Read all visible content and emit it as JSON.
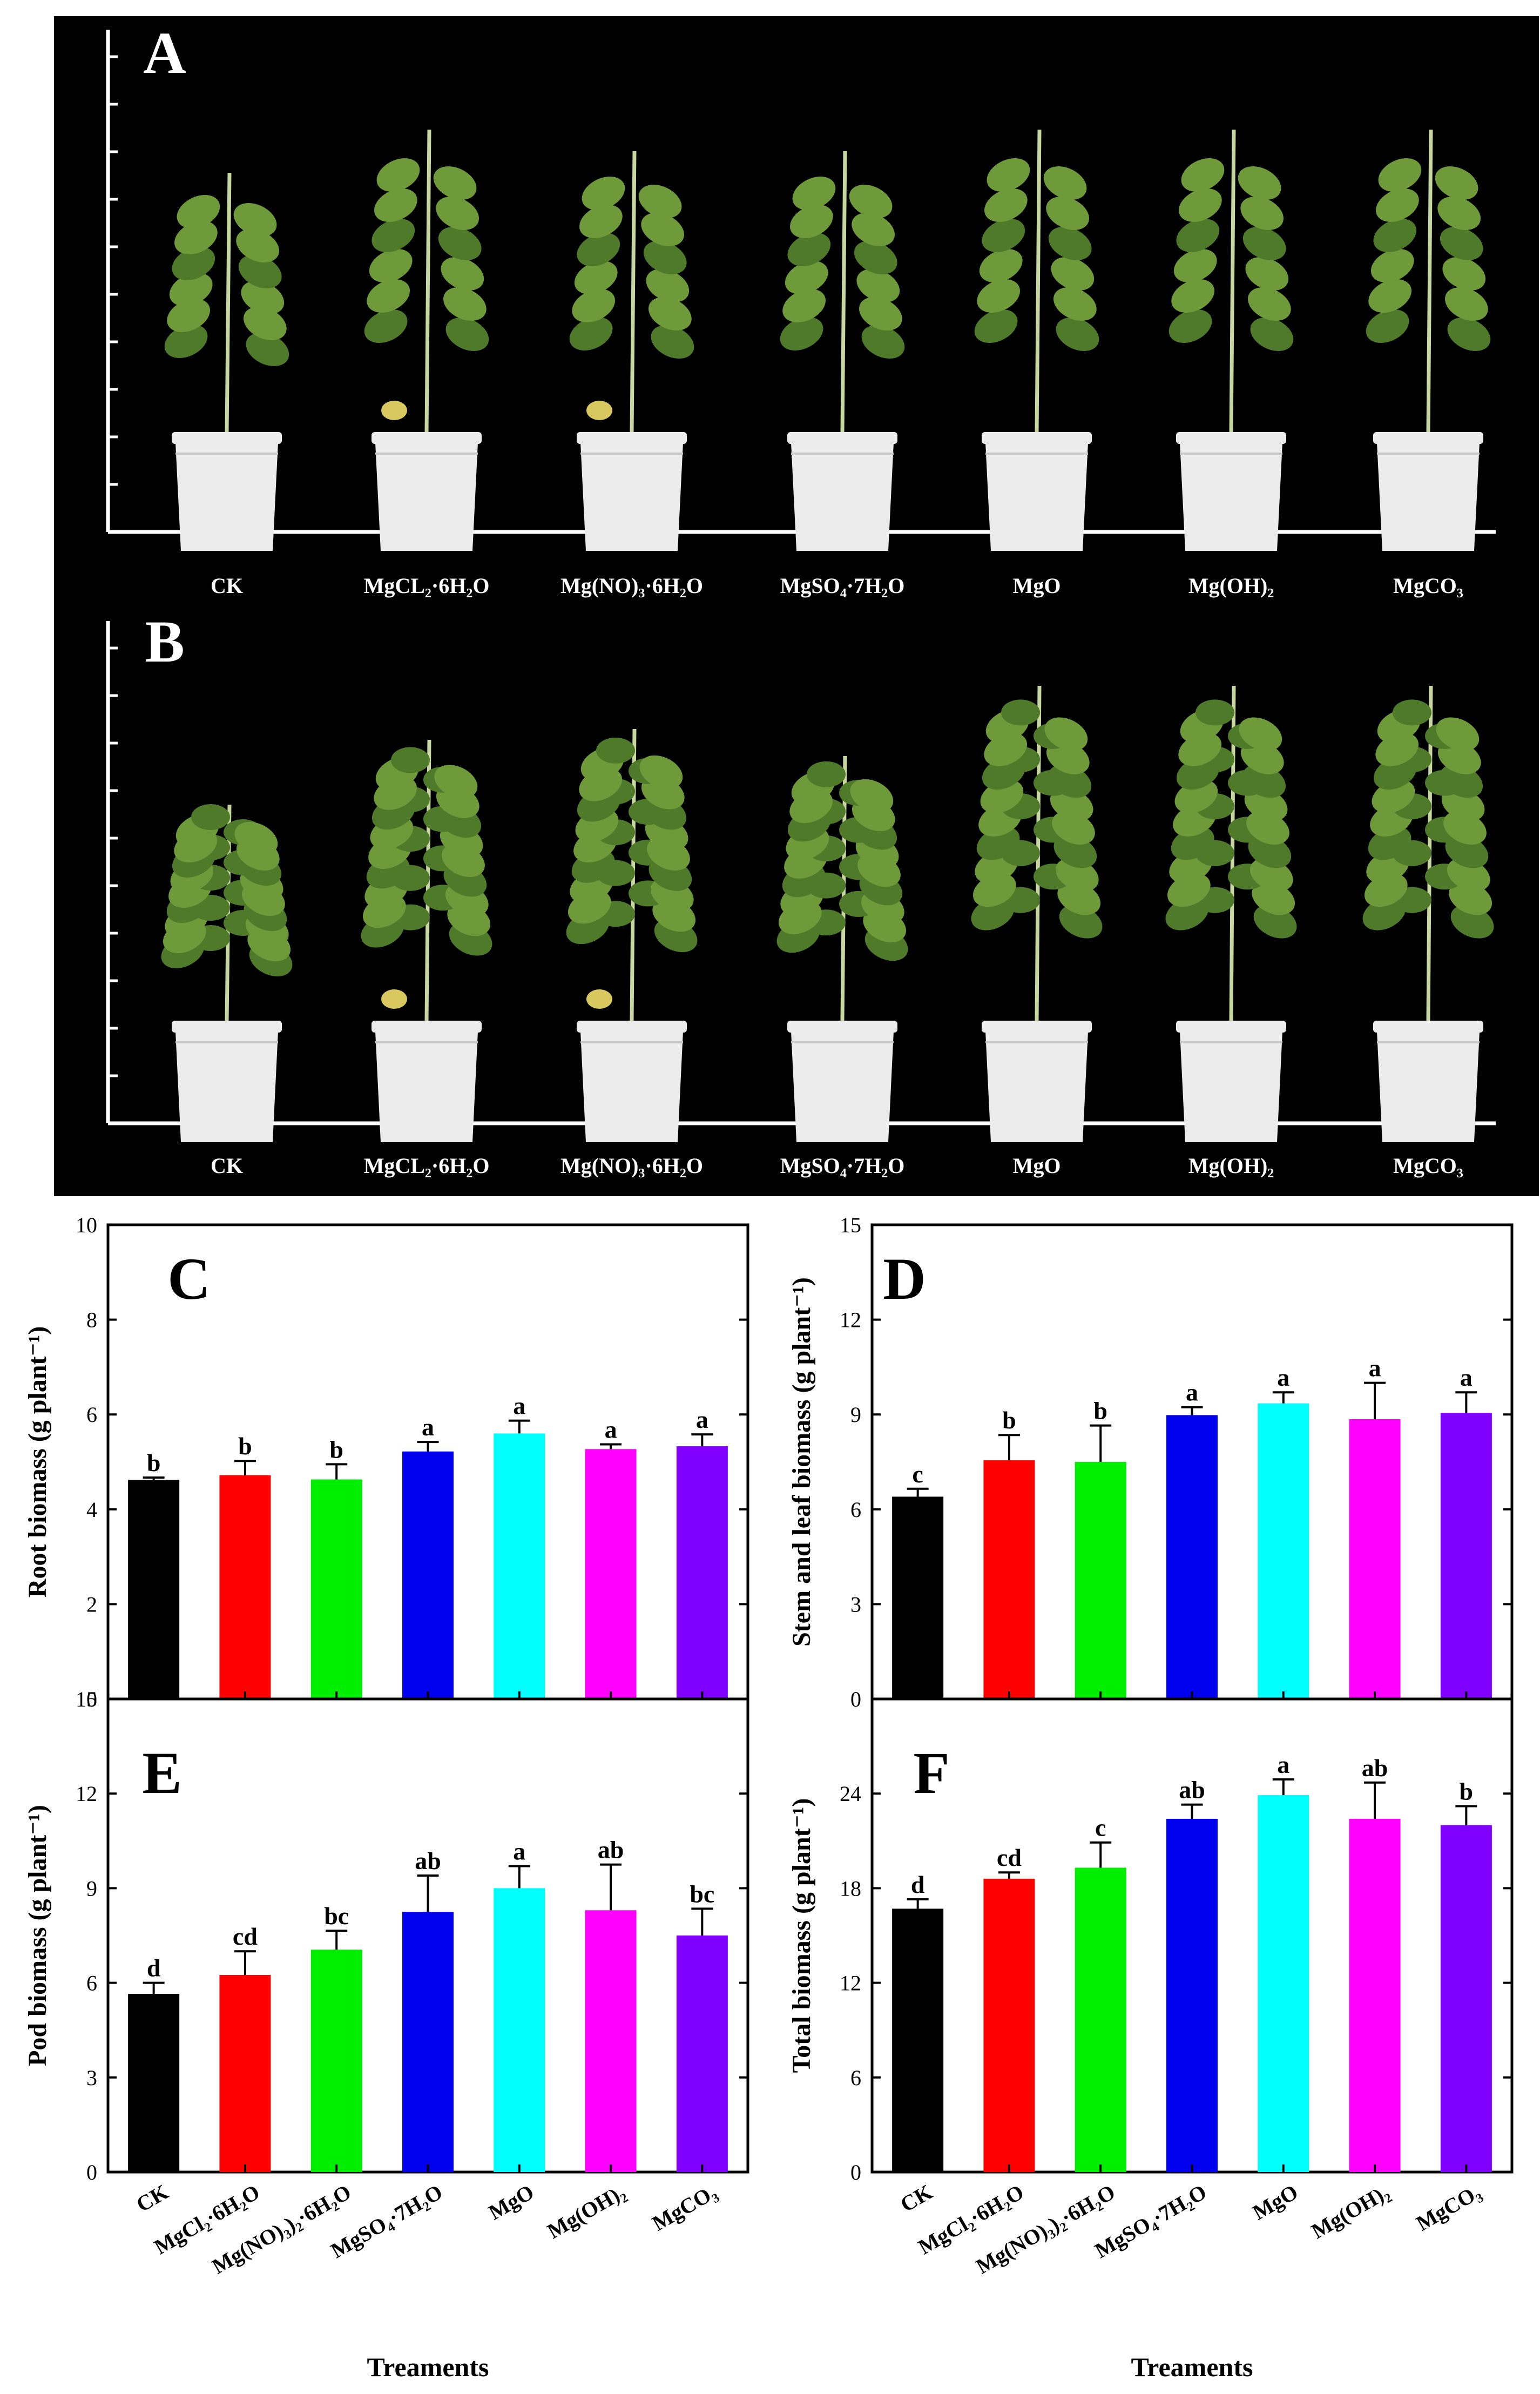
{
  "photo_panels": [
    {
      "label": "A",
      "plant_scale": 1.0,
      "treatments": [
        "CK",
        "MgCL₂·6H₂O",
        "Mg(NO)₃·6H₂O",
        "MgSO₄·7H₂O",
        "MgO",
        "Mg(OH)₂",
        "MgCO₃"
      ]
    },
    {
      "label": "B",
      "plant_scale": 1.35,
      "treatments": [
        "CK",
        "MgCL₂·6H₂O",
        "Mg(NO)₃·6H₂O",
        "MgSO₄·7H₂O",
        "MgO",
        "Mg(OH)₂",
        "MgCO₃"
      ]
    }
  ],
  "colors": {
    "photo_bg": "#000000",
    "pot": "#ececec",
    "pot_shade": "#c9c9c9",
    "stem": "#c8d6a0",
    "leaf": "#6f9a3a",
    "leaf_dark": "#4f7a2a",
    "leaf_yellow": "#d9c860",
    "bars": [
      "#000000",
      "#ff0000",
      "#00ee00",
      "#0000ee",
      "#00ffff",
      "#ff00ff",
      "#8000ff"
    ]
  },
  "x_axis": {
    "title": "Treaments",
    "tick_labels": [
      "CK",
      "MgCl₂·6H₂O",
      "Mg(NO)₃)₂·6H₂O",
      "MgSO₄·7H₂O",
      "MgO",
      "Mg(OH)₂",
      "MgCO₃"
    ]
  },
  "chart_data": [
    {
      "type": "bar",
      "panel": "C",
      "ylabel": "Root biomass (g plant⁻¹)",
      "ylim": [
        0,
        10
      ],
      "yticks": [
        0,
        2,
        4,
        6,
        8,
        10
      ],
      "categories": [
        "CK",
        "MgCl2·6H2O",
        "Mg(NO3)2·6H2O",
        "MgSO4·7H2O",
        "MgO",
        "Mg(OH)2",
        "MgCO3"
      ],
      "values": [
        4.62,
        4.72,
        4.63,
        5.22,
        5.6,
        5.27,
        5.33
      ],
      "errors": [
        0.05,
        0.3,
        0.32,
        0.2,
        0.27,
        0.1,
        0.25
      ],
      "letters": [
        "b",
        "b",
        "b",
        "a",
        "a",
        "a",
        "a"
      ]
    },
    {
      "type": "bar",
      "panel": "D",
      "ylabel": "Stem and leaf biomass (g plant⁻¹)",
      "ylim": [
        0,
        15
      ],
      "yticks": [
        0,
        3,
        6,
        9,
        12,
        15
      ],
      "categories": [
        "CK",
        "MgCl2·6H2O",
        "Mg(NO3)2·6H2O",
        "MgSO4·7H2O",
        "MgO",
        "Mg(OH)2",
        "MgCO3"
      ],
      "values": [
        6.4,
        7.55,
        7.5,
        8.98,
        9.35,
        8.85,
        9.05
      ],
      "errors": [
        0.25,
        0.8,
        1.15,
        0.25,
        0.35,
        1.15,
        0.65
      ],
      "letters": [
        "c",
        "b",
        "b",
        "a",
        "a",
        "a",
        "a"
      ]
    },
    {
      "type": "bar",
      "panel": "E",
      "ylabel": "Pod biomass (g plant⁻¹)",
      "ylim": [
        0,
        15
      ],
      "yticks": [
        0,
        3,
        6,
        9,
        12,
        15
      ],
      "categories": [
        "CK",
        "MgCl2·6H2O",
        "Mg(NO3)2·6H2O",
        "MgSO4·7H2O",
        "MgO",
        "Mg(OH)2",
        "MgCO3"
      ],
      "values": [
        5.65,
        6.25,
        7.05,
        8.25,
        9.0,
        8.3,
        7.5
      ],
      "errors": [
        0.35,
        0.75,
        0.6,
        1.15,
        0.7,
        1.45,
        0.85
      ],
      "letters": [
        "d",
        "cd",
        "bc",
        "ab",
        "a",
        "ab",
        "bc"
      ]
    },
    {
      "type": "bar",
      "panel": "F",
      "ylabel": "Total biomass (g plant⁻¹)",
      "ylim": [
        0,
        30
      ],
      "yticks": [
        0,
        6,
        12,
        18,
        24
      ],
      "categories": [
        "CK",
        "MgCl2·6H2O",
        "Mg(NO3)2·6H2O",
        "MgSO4·7H2O",
        "MgO",
        "Mg(OH)2",
        "MgCO3"
      ],
      "values": [
        16.7,
        18.6,
        19.3,
        22.4,
        23.9,
        22.4,
        22.0
      ],
      "errors": [
        0.6,
        0.4,
        1.6,
        0.9,
        1.0,
        2.3,
        1.2
      ],
      "letters": [
        "d",
        "cd",
        "c",
        "ab",
        "a",
        "ab",
        "b"
      ]
    }
  ]
}
